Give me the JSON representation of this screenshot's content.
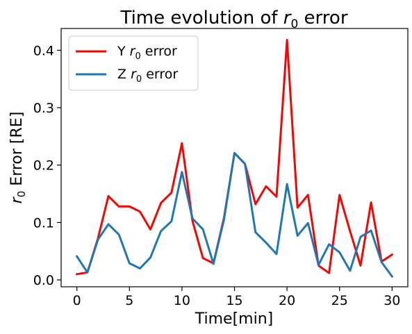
{
  "chart_data": {
    "type": "line",
    "title_prefix": "Time evolution of ",
    "title_var": "r",
    "title_sub": "0",
    "title_suffix": " error",
    "xlabel": "Time[min]",
    "ylabel_var": "r",
    "ylabel_sub": "0",
    "ylabel_suffix": " Error [RE]",
    "xlim": [
      -1.5,
      31.5
    ],
    "ylim": [
      -0.012,
      0.438
    ],
    "xticks": [
      0,
      5,
      10,
      15,
      20,
      25,
      30
    ],
    "xtick_labels": [
      "0",
      "5",
      "10",
      "15",
      "20",
      "25",
      "30"
    ],
    "yticks": [
      0.0,
      0.1,
      0.2,
      0.3,
      0.4
    ],
    "ytick_labels": [
      "0.0",
      "0.1",
      "0.2",
      "0.3",
      "0.4"
    ],
    "legend_position": "upper-left",
    "grid": false,
    "x": [
      0,
      1,
      2,
      3,
      4,
      5,
      6,
      7,
      8,
      9,
      10,
      11,
      12,
      13,
      14,
      15,
      16,
      17,
      18,
      19,
      20,
      21,
      22,
      23,
      24,
      25,
      26,
      27,
      28,
      29,
      30
    ],
    "series": [
      {
        "name_prefix": "Y ",
        "name_var": "r",
        "name_sub": "0",
        "name_suffix": " error",
        "color": "#ff0000",
        "values": [
          0.01,
          0.013,
          0.072,
          0.146,
          0.128,
          0.128,
          0.119,
          0.088,
          0.134,
          0.152,
          0.238,
          0.103,
          0.038,
          0.029,
          0.108,
          0.221,
          0.202,
          0.132,
          0.163,
          0.145,
          0.418,
          0.126,
          0.148,
          0.025,
          0.012,
          0.148,
          0.085,
          0.025,
          0.135,
          0.032,
          0.044
        ]
      },
      {
        "name_prefix": "Z ",
        "name_var": "r",
        "name_sub": "0",
        "name_suffix": " error",
        "color": "#1f77b4",
        "values": [
          0.041,
          0.013,
          0.07,
          0.097,
          0.079,
          0.029,
          0.02,
          0.039,
          0.085,
          0.102,
          0.188,
          0.107,
          0.088,
          0.028,
          0.105,
          0.221,
          0.202,
          0.083,
          0.065,
          0.045,
          0.167,
          0.077,
          0.099,
          0.026,
          0.062,
          0.048,
          0.016,
          0.075,
          0.086,
          0.031,
          0.006
        ]
      }
    ]
  }
}
